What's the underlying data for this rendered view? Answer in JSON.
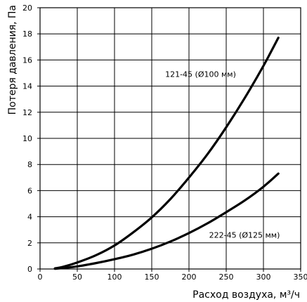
{
  "chart_data": {
    "type": "line",
    "title": "",
    "xlabel": "Расход воздуха, м³/ч",
    "ylabel": "Потеря давления, Па",
    "xlim": [
      0,
      350
    ],
    "ylim": [
      0,
      20
    ],
    "x_ticks": [
      0,
      50,
      100,
      150,
      200,
      250,
      300,
      350
    ],
    "y_ticks": [
      0,
      2,
      4,
      6,
      8,
      10,
      12,
      14,
      16,
      18,
      20
    ],
    "x_tick_labels": [
      "0",
      "50",
      "100",
      "150",
      "200",
      "250",
      "300",
      "350"
    ],
    "y_tick_labels": [
      "0",
      "2",
      "4",
      "6",
      "8",
      "10",
      "12",
      "14",
      "16",
      "18",
      "20"
    ],
    "grid": true,
    "series": [
      {
        "name": "121-45 (Ø100 мм)",
        "x": [
          20,
          30,
          50,
          75,
          100,
          125,
          150,
          175,
          200,
          225,
          250,
          275,
          300,
          320
        ],
        "y": [
          0.05,
          0.15,
          0.5,
          1.05,
          1.8,
          2.8,
          3.95,
          5.35,
          7.0,
          8.8,
          10.85,
          13.1,
          15.55,
          17.7
        ]
      },
      {
        "name": "222-45 (Ø125 мм)",
        "x": [
          20,
          30,
          50,
          75,
          100,
          125,
          150,
          175,
          200,
          225,
          250,
          275,
          300,
          320
        ],
        "y": [
          0.02,
          0.07,
          0.2,
          0.45,
          0.75,
          1.1,
          1.55,
          2.1,
          2.75,
          3.5,
          4.35,
          5.25,
          6.3,
          7.3
        ]
      }
    ]
  }
}
